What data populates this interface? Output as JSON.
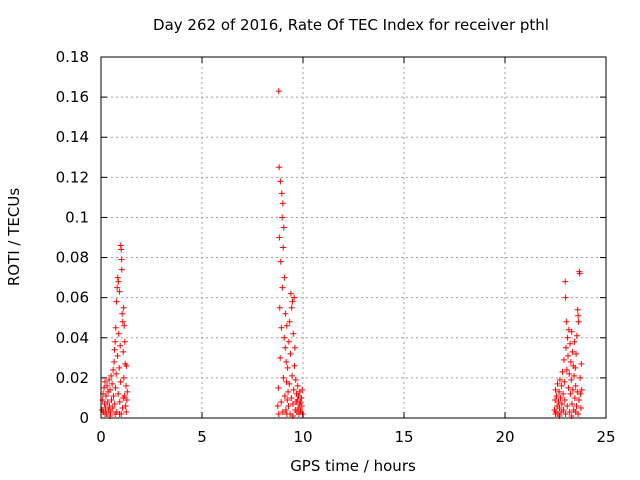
{
  "chart_data": {
    "type": "scatter",
    "title": "Day 262 of 2016, Rate Of TEC Index for receiver pthl",
    "xlabel": "GPS time / hours",
    "ylabel": "ROTI / TECUs",
    "xlim": [
      0,
      25
    ],
    "ylim": [
      0,
      0.18
    ],
    "xticks": [
      "0",
      "5",
      "10",
      "15",
      "20",
      "25"
    ],
    "yticks": [
      "0",
      "0.02",
      "0.04",
      "0.06",
      "0.08",
      "0.1",
      "0.12",
      "0.14",
      "0.16",
      "0.18"
    ],
    "grid": true,
    "marker": "+",
    "color": "#ff0000",
    "series": [
      {
        "name": "pthl",
        "points": [
          [
            0.05,
            0.004
          ],
          [
            0.08,
            0.009
          ],
          [
            0.1,
            0.012
          ],
          [
            0.12,
            0.003
          ],
          [
            0.15,
            0.015
          ],
          [
            0.18,
            0.007
          ],
          [
            0.2,
            0.018
          ],
          [
            0.22,
            0.005
          ],
          [
            0.25,
            0.011
          ],
          [
            0.28,
            0.002
          ],
          [
            0.3,
            0.016
          ],
          [
            0.33,
            0.008
          ],
          [
            0.35,
            0.013
          ],
          [
            0.38,
            0.004
          ],
          [
            0.4,
            0.019
          ],
          [
            0.42,
            0.006
          ],
          [
            0.45,
            0.014
          ],
          [
            0.48,
            0.003
          ],
          [
            0.5,
            0.021
          ],
          [
            0.52,
            0.009
          ],
          [
            0.55,
            0.017
          ],
          [
            0.58,
            0.005
          ],
          [
            0.6,
            0.024
          ],
          [
            0.62,
            0.011
          ],
          [
            0.65,
            0.028
          ],
          [
            0.67,
            0.034
          ],
          [
            0.68,
            0.007
          ],
          [
            0.7,
            0.038
          ],
          [
            0.72,
            0.015
          ],
          [
            0.73,
            0.045
          ],
          [
            0.75,
            0.022
          ],
          [
            0.77,
            0.058
          ],
          [
            0.78,
            0.003
          ],
          [
            0.8,
            0.065
          ],
          [
            0.82,
            0.031
          ],
          [
            0.83,
            0.07
          ],
          [
            0.85,
            0.012
          ],
          [
            0.86,
            0.068
          ],
          [
            0.88,
            0.042
          ],
          [
            0.9,
            0.025
          ],
          [
            0.92,
            0.063
          ],
          [
            0.93,
            0.008
          ],
          [
            0.95,
            0.036
          ],
          [
            0.97,
            0.018
          ],
          [
            0.98,
            0.086
          ],
          [
            1.0,
            0.084
          ],
          [
            1.02,
            0.079
          ],
          [
            1.03,
            0.074
          ],
          [
            1.05,
            0.052
          ],
          [
            1.07,
            0.005
          ],
          [
            1.08,
            0.048
          ],
          [
            1.1,
            0.033
          ],
          [
            1.12,
            0.055
          ],
          [
            1.13,
            0.02
          ],
          [
            1.15,
            0.046
          ],
          [
            1.17,
            0.011
          ],
          [
            1.18,
            0.038
          ],
          [
            1.2,
            0.027
          ],
          [
            1.22,
            0.006
          ],
          [
            1.24,
            0.016
          ],
          [
            1.26,
            0.026
          ],
          [
            1.28,
            0.009
          ],
          [
            1.3,
            0.013
          ],
          [
            1.25,
            0.003
          ],
          [
            0.92,
            0.002
          ],
          [
            0.7,
            0.002
          ],
          [
            0.45,
            0.001
          ],
          [
            0.2,
            0.002
          ],
          [
            1.0,
            0.002
          ],
          [
            1.1,
            0.01
          ],
          [
            8.75,
            0.006
          ],
          [
            8.78,
            0.015
          ],
          [
            8.8,
            0.163
          ],
          [
            8.82,
            0.125
          ],
          [
            8.83,
            0.09
          ],
          [
            8.85,
            0.055
          ],
          [
            8.87,
            0.03
          ],
          [
            8.88,
            0.118
          ],
          [
            8.9,
            0.078
          ],
          [
            8.92,
            0.008
          ],
          [
            8.93,
            0.045
          ],
          [
            8.95,
            0.112
          ],
          [
            8.97,
            0.1
          ],
          [
            8.98,
            0.065
          ],
          [
            9.0,
            0.107
          ],
          [
            9.02,
            0.085
          ],
          [
            9.03,
            0.02
          ],
          [
            9.05,
            0.095
          ],
          [
            9.07,
            0.04
          ],
          [
            9.08,
            0.07
          ],
          [
            9.1,
            0.011
          ],
          [
            9.12,
            0.035
          ],
          [
            9.13,
            0.052
          ],
          [
            9.15,
            0.004
          ],
          [
            9.17,
            0.028
          ],
          [
            9.18,
            0.018
          ],
          [
            9.2,
            0.046
          ],
          [
            9.22,
            0.009
          ],
          [
            9.24,
            0.025
          ],
          [
            9.26,
            0.013
          ],
          [
            9.28,
            0.006
          ],
          [
            9.3,
            0.038
          ],
          [
            9.32,
            0.017
          ],
          [
            9.34,
            0.048
          ],
          [
            9.36,
            0.002
          ],
          [
            9.38,
            0.032
          ],
          [
            9.4,
            0.062
          ],
          [
            9.42,
            0.01
          ],
          [
            9.44,
            0.055
          ],
          [
            9.46,
            0.021
          ],
          [
            9.48,
            0.058
          ],
          [
            9.5,
            0.007
          ],
          [
            9.52,
            0.042
          ],
          [
            9.54,
            0.014
          ],
          [
            9.56,
            0.06
          ],
          [
            9.58,
            0.026
          ],
          [
            9.6,
            0.035
          ],
          [
            9.62,
            0.004
          ],
          [
            9.64,
            0.019
          ],
          [
            9.66,
            0.008
          ],
          [
            9.68,
            0.012
          ],
          [
            9.7,
            0.003
          ],
          [
            9.72,
            0.009
          ],
          [
            9.74,
            0.016
          ],
          [
            9.76,
            0.005
          ],
          [
            9.78,
            0.011
          ],
          [
            9.8,
            0.002
          ],
          [
            9.82,
            0.007
          ],
          [
            9.84,
            0.013
          ],
          [
            9.86,
            0.004
          ],
          [
            9.88,
            0.008
          ],
          [
            9.9,
            0.003
          ],
          [
            9.92,
            0.01
          ],
          [
            9.94,
            0.006
          ],
          [
            9.96,
            0.014
          ],
          [
            9.98,
            0.002
          ],
          [
            9.5,
            0.001
          ],
          [
            9.2,
            0.002
          ],
          [
            9.0,
            0.003
          ],
          [
            8.8,
            0.002
          ],
          [
            22.45,
            0.004
          ],
          [
            22.48,
            0.009
          ],
          [
            22.5,
            0.014
          ],
          [
            22.52,
            0.003
          ],
          [
            22.55,
            0.011
          ],
          [
            22.58,
            0.006
          ],
          [
            22.6,
            0.017
          ],
          [
            22.62,
            0.002
          ],
          [
            22.65,
            0.008
          ],
          [
            22.68,
            0.013
          ],
          [
            22.7,
            0.005
          ],
          [
            22.72,
            0.019
          ],
          [
            22.75,
            0.01
          ],
          [
            22.78,
            0.003
          ],
          [
            22.8,
            0.016
          ],
          [
            22.82,
            0.007
          ],
          [
            22.85,
            0.023
          ],
          [
            22.88,
            0.012
          ],
          [
            22.9,
            0.004
          ],
          [
            22.92,
            0.029
          ],
          [
            22.94,
            0.018
          ],
          [
            22.96,
            0.009
          ],
          [
            22.98,
            0.068
          ],
          [
            23.0,
            0.06
          ],
          [
            23.02,
            0.035
          ],
          [
            23.04,
            0.048
          ],
          [
            23.06,
            0.024
          ],
          [
            23.08,
            0.006
          ],
          [
            23.1,
            0.04
          ],
          [
            23.12,
            0.031
          ],
          [
            23.14,
            0.015
          ],
          [
            23.16,
            0.044
          ],
          [
            23.18,
            0.022
          ],
          [
            23.2,
            0.003
          ],
          [
            23.22,
            0.037
          ],
          [
            23.24,
            0.012
          ],
          [
            23.26,
            0.028
          ],
          [
            23.28,
            0.019
          ],
          [
            23.3,
            0.043
          ],
          [
            23.32,
            0.007
          ],
          [
            23.34,
            0.033
          ],
          [
            23.36,
            0.014
          ],
          [
            23.38,
            0.026
          ],
          [
            23.4,
            0.004
          ],
          [
            23.42,
            0.021
          ],
          [
            23.44,
            0.038
          ],
          [
            23.46,
            0.01
          ],
          [
            23.48,
            0.025
          ],
          [
            23.5,
            0.016
          ],
          [
            23.52,
            0.032
          ],
          [
            23.54,
            0.006
          ],
          [
            23.56,
            0.041
          ],
          [
            23.58,
            0.013
          ],
          [
            23.6,
            0.054
          ],
          [
            23.62,
            0.051
          ],
          [
            23.64,
            0.048
          ],
          [
            23.66,
            0.009
          ],
          [
            23.68,
            0.073
          ],
          [
            23.7,
            0.072
          ],
          [
            23.72,
            0.02
          ],
          [
            23.74,
            0.012
          ],
          [
            23.76,
            0.005
          ],
          [
            23.78,
            0.027
          ],
          [
            23.8,
            0.014
          ],
          [
            23.62,
            0.002
          ],
          [
            23.3,
            0.001
          ],
          [
            23.0,
            0.002
          ],
          [
            22.7,
            0.001
          ],
          [
            22.5,
            0.002
          ],
          [
            23.5,
            0.003
          ]
        ]
      }
    ]
  }
}
